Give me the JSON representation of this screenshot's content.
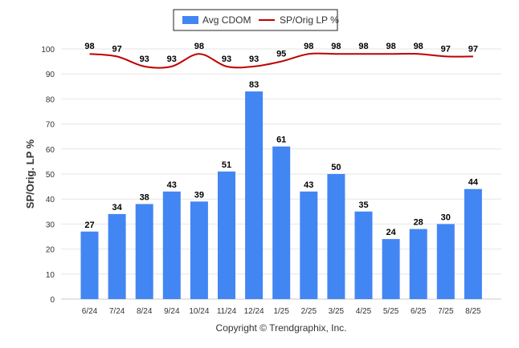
{
  "chart_data": {
    "type": "bar",
    "categories": [
      "6/24",
      "7/24",
      "8/24",
      "9/24",
      "10/24",
      "11/24",
      "12/24",
      "1/25",
      "2/25",
      "3/25",
      "4/25",
      "5/25",
      "6/25",
      "7/25",
      "8/25"
    ],
    "series": [
      {
        "name": "Avg CDOM",
        "kind": "bar",
        "color": "#4286f4",
        "values": [
          27,
          34,
          38,
          43,
          39,
          51,
          83,
          61,
          43,
          50,
          35,
          24,
          28,
          30,
          44
        ]
      },
      {
        "name": "SP/Orig LP %",
        "kind": "line",
        "color": "#c00000",
        "values": [
          98,
          97,
          93,
          93,
          98,
          93,
          93,
          95,
          98,
          98,
          98,
          98,
          98,
          97,
          97
        ]
      }
    ],
    "ylabel": "SP/Orig. LP %",
    "ylim": [
      0,
      100
    ],
    "yticks": [
      0,
      10,
      20,
      30,
      40,
      50,
      60,
      70,
      80,
      90,
      100
    ],
    "grid": true,
    "legend": "top-center"
  },
  "credit": "Copyright © Trendgraphix, Inc."
}
